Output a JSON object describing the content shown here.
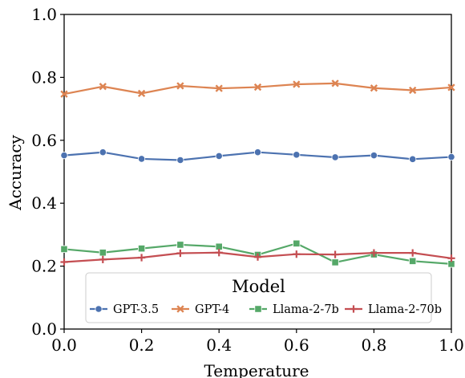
{
  "chart_data": {
    "type": "line",
    "title": "",
    "xlabel": "Temperature",
    "ylabel": "Accuracy",
    "xlim": [
      0.0,
      1.0
    ],
    "ylim": [
      0.0,
      1.0
    ],
    "x_ticks": [
      0.0,
      0.2,
      0.4,
      0.6,
      0.8,
      1.0
    ],
    "x_tick_labels": [
      "0.0",
      "0.2",
      "0.4",
      "0.6",
      "0.8",
      "1.0"
    ],
    "y_ticks": [
      0.0,
      0.2,
      0.4,
      0.6,
      0.8,
      1.0
    ],
    "y_tick_labels": [
      "0.0",
      "0.2",
      "0.4",
      "0.6",
      "0.8",
      "1.0"
    ],
    "grid": false,
    "x": [
      0.0,
      0.1,
      0.2,
      0.3,
      0.4,
      0.5,
      0.6,
      0.7,
      0.8,
      0.9,
      1.0
    ],
    "legend": {
      "title": "Model",
      "placement": "bottom-center"
    },
    "series": [
      {
        "name": "GPT-3.5",
        "color": "#4c72b0",
        "marker": "circle",
        "values": [
          0.552,
          0.562,
          0.541,
          0.537,
          0.55,
          0.562,
          0.554,
          0.546,
          0.552,
          0.54,
          0.547
        ]
      },
      {
        "name": "GPT-4",
        "color": "#dd8452",
        "marker": "x",
        "values": [
          0.747,
          0.771,
          0.749,
          0.773,
          0.765,
          0.769,
          0.778,
          0.781,
          0.766,
          0.759,
          0.768
        ]
      },
      {
        "name": "Llama-2-7b",
        "color": "#55a868",
        "marker": "square",
        "values": [
          0.254,
          0.243,
          0.256,
          0.268,
          0.262,
          0.236,
          0.272,
          0.212,
          0.237,
          0.216,
          0.207
        ]
      },
      {
        "name": "Llama-2-70b",
        "color": "#c44e52",
        "marker": "plus",
        "values": [
          0.213,
          0.221,
          0.227,
          0.241,
          0.243,
          0.229,
          0.238,
          0.237,
          0.242,
          0.242,
          0.225
        ]
      }
    ]
  }
}
